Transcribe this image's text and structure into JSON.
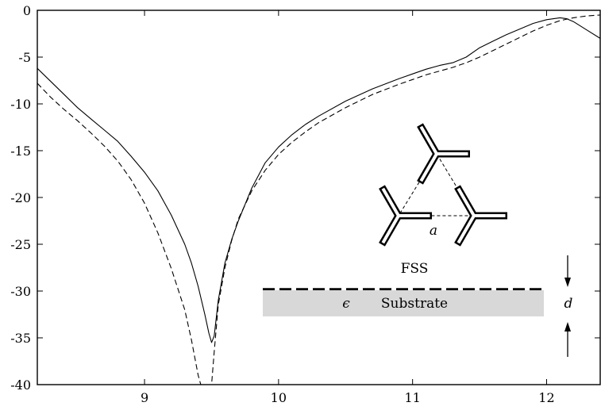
{
  "chart_data": {
    "type": "line",
    "title": "",
    "xlabel": "",
    "ylabel": "",
    "xlim": [
      8.2,
      12.4
    ],
    "ylim": [
      -40,
      0
    ],
    "x_ticks": [
      9,
      10,
      11,
      12
    ],
    "y_ticks": [
      0,
      -5,
      -10,
      -15,
      -20,
      -25,
      -30,
      -35,
      -40
    ],
    "x_tick_labels": [
      "9",
      "10",
      "11",
      "12"
    ],
    "y_tick_labels": [
      "0",
      "-5",
      "-10",
      "-15",
      "-20",
      "-25",
      "-30",
      "-35",
      "-40"
    ],
    "grid": false,
    "series": [
      {
        "style": "solid",
        "x": [
          8.2,
          8.3,
          8.4,
          8.5,
          8.6,
          8.7,
          8.8,
          8.9,
          9.0,
          9.1,
          9.2,
          9.3,
          9.35,
          9.4,
          9.45,
          9.48,
          9.5,
          9.52,
          9.55,
          9.6,
          9.65,
          9.7,
          9.8,
          9.9,
          10.0,
          10.1,
          10.2,
          10.3,
          10.5,
          10.7,
          10.9,
          11.0,
          11.1,
          11.2,
          11.3,
          11.4,
          11.5,
          11.6,
          11.7,
          11.8,
          11.9,
          12.0,
          12.1,
          12.15,
          12.2,
          12.3,
          12.4
        ],
        "y": [
          -6.2,
          -7.6,
          -9.0,
          -10.4,
          -11.6,
          -12.8,
          -14.0,
          -15.6,
          -17.3,
          -19.3,
          -21.9,
          -25.0,
          -27.0,
          -29.5,
          -32.5,
          -34.5,
          -35.5,
          -34.8,
          -31.0,
          -27.0,
          -24.5,
          -22.5,
          -19.0,
          -16.3,
          -14.6,
          -13.3,
          -12.2,
          -11.3,
          -9.7,
          -8.4,
          -7.3,
          -6.8,
          -6.3,
          -5.9,
          -5.6,
          -5.0,
          -4.0,
          -3.3,
          -2.6,
          -2.0,
          -1.4,
          -1.0,
          -0.8,
          -0.9,
          -1.2,
          -2.1,
          -3.0
        ]
      },
      {
        "style": "dashed",
        "x": [
          8.2,
          8.3,
          8.4,
          8.5,
          8.6,
          8.7,
          8.8,
          8.9,
          9.0,
          9.1,
          9.2,
          9.3,
          9.35,
          9.4,
          9.42,
          9.5,
          9.52,
          9.55,
          9.6,
          9.65,
          9.7,
          9.8,
          9.9,
          10.0,
          10.1,
          10.2,
          10.3,
          10.5,
          10.7,
          10.9,
          11.0,
          11.1,
          11.2,
          11.3,
          11.4,
          11.5,
          11.6,
          11.7,
          11.8,
          11.9,
          12.0,
          12.1,
          12.2,
          12.3,
          12.4
        ],
        "y": [
          -7.8,
          -9.3,
          -10.6,
          -11.8,
          -13.1,
          -14.5,
          -16.1,
          -18.1,
          -20.6,
          -23.8,
          -27.6,
          -32.0,
          -35.2,
          -39.0,
          -40.0,
          -40.0,
          -36.5,
          -31.5,
          -27.5,
          -24.6,
          -22.3,
          -19.3,
          -17.1,
          -15.4,
          -14.1,
          -13.0,
          -12.0,
          -10.4,
          -9.0,
          -7.9,
          -7.4,
          -6.9,
          -6.5,
          -6.1,
          -5.6,
          -5.0,
          -4.3,
          -3.6,
          -2.9,
          -2.2,
          -1.6,
          -1.1,
          -0.8,
          -0.6,
          -0.5
        ]
      }
    ],
    "annotations": {
      "fss_label": "FSS",
      "lattice_label": "a",
      "epsilon_label": "ϵ",
      "substrate_label": "Substrate",
      "thickness_label": "d"
    }
  }
}
